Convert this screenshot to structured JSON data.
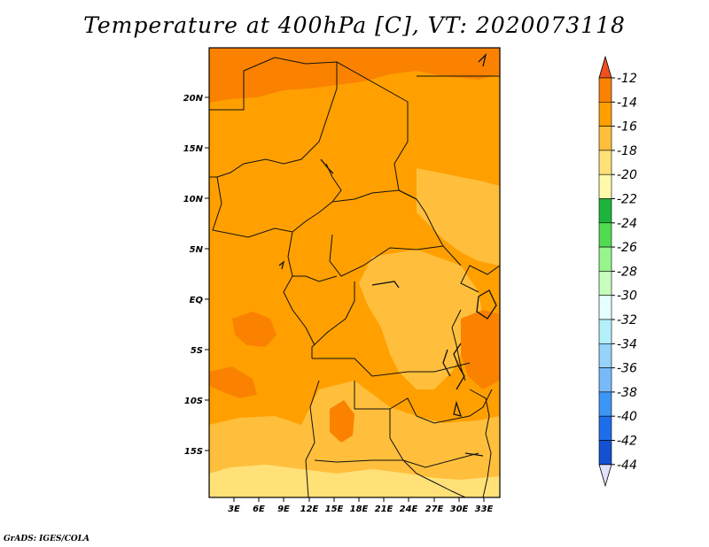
{
  "title": "Temperature at 400hPa [C], VT: 2020073118",
  "footer": "GrADS: IGES/COLA",
  "map": {
    "lat_labels": [
      "20N",
      "15N",
      "10N",
      "5N",
      "EQ",
      "5S",
      "10S",
      "15S"
    ],
    "lon_labels": [
      "3E",
      "6E",
      "9E",
      "12E",
      "15E",
      "18E",
      "21E",
      "24E",
      "27E",
      "30E",
      "33E"
    ]
  },
  "colorbar": {
    "labels": [
      "-12",
      "-14",
      "-16",
      "-18",
      "-20",
      "-22",
      "-24",
      "-26",
      "-28",
      "-30",
      "-32",
      "-34",
      "-36",
      "-38",
      "-40",
      "-42",
      "-44"
    ],
    "colors": [
      "#f0501e",
      "#fa8200",
      "#ffa000",
      "#ffbf3c",
      "#ffe178",
      "#fffaaa",
      "#1eb43c",
      "#50dc50",
      "#96f58c",
      "#c8ffbe",
      "#e6ffff",
      "#b4f0fa",
      "#96d2fa",
      "#78b9fa",
      "#3c96f5",
      "#1e6eeb",
      "#1450d2",
      "#0a1e78"
    ],
    "top_arrow_color": "#f0501e",
    "bottom_arrow_color": "#e1e1fa"
  },
  "palette": {
    "warm": "#f0501e",
    "orange": "#fa8200",
    "mid": "#ffa000",
    "light": "#ffbf3c",
    "pale": "#ffe178"
  }
}
